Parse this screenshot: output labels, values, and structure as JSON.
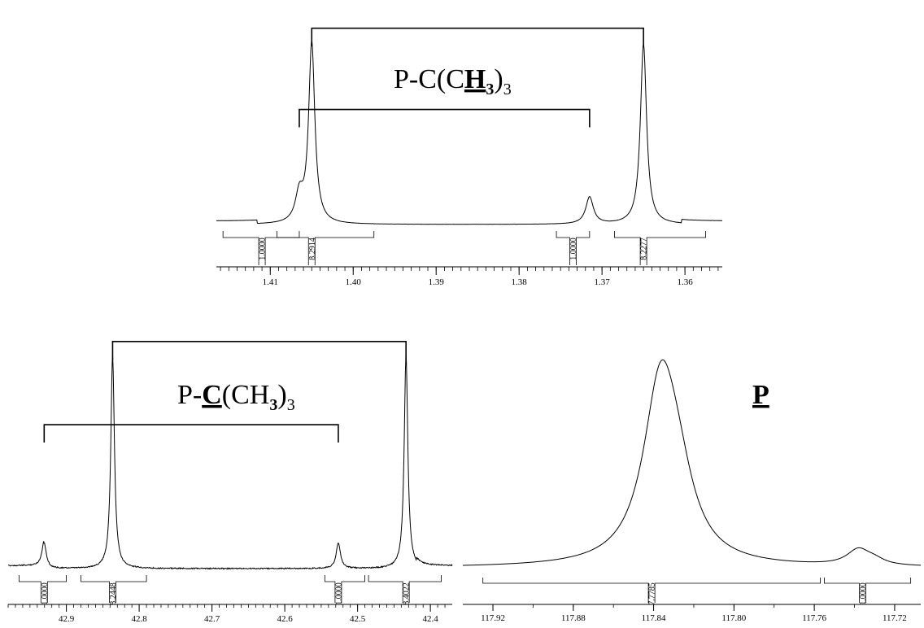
{
  "chart_data": [
    {
      "id": "h",
      "type": "line",
      "title": "",
      "annotation": {
        "prefix": "P-C(C",
        "bold": "H",
        "bold_sub": "3",
        "close": ")",
        "sub": "3"
      },
      "xlabel": "",
      "ylabel": "",
      "xlim": [
        1.4165,
        1.3555
      ],
      "x_ticks": [
        1.41,
        1.4,
        1.39,
        1.38,
        1.37,
        1.36
      ],
      "x_tick_labels": [
        "1.41",
        "1.40",
        "1.39",
        "1.38",
        "1.37",
        "1.36"
      ],
      "peaks": [
        {
          "x": 1.4065,
          "height": 0.15,
          "width": 0.00055
        },
        {
          "x": 1.405,
          "height": 1.0,
          "width": 0.00045
        },
        {
          "x": 1.3715,
          "height": 0.15,
          "width": 0.00055
        },
        {
          "x": 1.365,
          "height": 1.0,
          "width": 0.00045
        }
      ],
      "integrals": [
        {
          "from": 1.4157,
          "to": 1.4065,
          "value": "1.0000",
          "label_x": 1.411
        },
        {
          "from": 1.4092,
          "to": 1.3975,
          "value": "8.2914",
          "label_x": 1.405
        },
        {
          "from": 1.3755,
          "to": 1.3715,
          "value": "1.0000",
          "label_x": 1.3735
        },
        {
          "from": 1.3685,
          "to": 1.3575,
          "value": "8.2277",
          "label_x": 1.365
        }
      ],
      "brackets": [
        {
          "x1": 1.405,
          "x2": 1.365,
          "level": 0.97
        },
        {
          "x1": 1.4065,
          "x2": 1.3715,
          "level": 0.52
        }
      ],
      "grid": false,
      "legend": "none"
    },
    {
      "id": "c",
      "type": "line",
      "title": "",
      "annotation": {
        "prefix": "P-",
        "bold": "C",
        "close": "(CH",
        "bold_sub": "3",
        "close2": ")",
        "sub": "3"
      },
      "xlabel": "",
      "ylabel": "",
      "xlim": [
        42.98,
        42.37
      ],
      "x_ticks": [
        42.9,
        42.8,
        42.7,
        42.6,
        42.5,
        42.4
      ],
      "x_tick_labels": [
        "42.9",
        "42.8",
        "42.7",
        "42.6",
        "42.5",
        "42.4"
      ],
      "peaks": [
        {
          "x": 42.9305,
          "height": 0.12,
          "width": 0.0035
        },
        {
          "x": 42.8365,
          "height": 1.0,
          "width": 0.003
        },
        {
          "x": 42.5265,
          "height": 0.12,
          "width": 0.0035
        },
        {
          "x": 42.4335,
          "height": 1.0,
          "width": 0.003
        }
      ],
      "integrals": [
        {
          "from": 42.965,
          "to": 42.9,
          "value": "1.0000",
          "label_x": 42.9305
        },
        {
          "from": 42.88,
          "to": 42.79,
          "value": "8.2448",
          "label_x": 42.8365
        },
        {
          "from": 42.545,
          "to": 42.49,
          "value": "1.0000",
          "label_x": 42.5265
        },
        {
          "from": 42.485,
          "to": 42.385,
          "value": "8.4022",
          "label_x": 42.4335
        }
      ],
      "brackets": [
        {
          "x1": 42.8365,
          "x2": 42.4335,
          "level": 0.97
        },
        {
          "x1": 42.9305,
          "x2": 42.5265,
          "level": 0.58
        }
      ],
      "grid": false,
      "legend": "none"
    },
    {
      "id": "p",
      "type": "line",
      "title": "",
      "annotation": {
        "bold": "P"
      },
      "xlabel": "",
      "ylabel": "",
      "xlim": [
        117.935,
        117.707
      ],
      "x_ticks": [
        117.92,
        117.88,
        117.84,
        117.8,
        117.76,
        117.72
      ],
      "x_tick_labels": [
        "117.92",
        "117.88",
        "117.84",
        "117.80",
        "117.76",
        "117.72"
      ],
      "peaks": [
        {
          "x": 117.8365,
          "height": 1.0,
          "width": 0.0105
        },
        {
          "x": 117.828,
          "height": 0.3,
          "width": 0.01
        },
        {
          "x": 117.738,
          "height": 0.09,
          "width": 0.007
        },
        {
          "x": 117.73,
          "height": 0.025,
          "width": 0.006
        }
      ],
      "integrals": [
        {
          "from": 117.925,
          "to": 117.757,
          "value": "7.7785",
          "label_x": 117.841
        },
        {
          "from": 117.755,
          "to": 117.712,
          "value": "1.0000",
          "label_x": 117.736
        }
      ],
      "brackets": [],
      "grid": false,
      "legend": "none"
    }
  ]
}
